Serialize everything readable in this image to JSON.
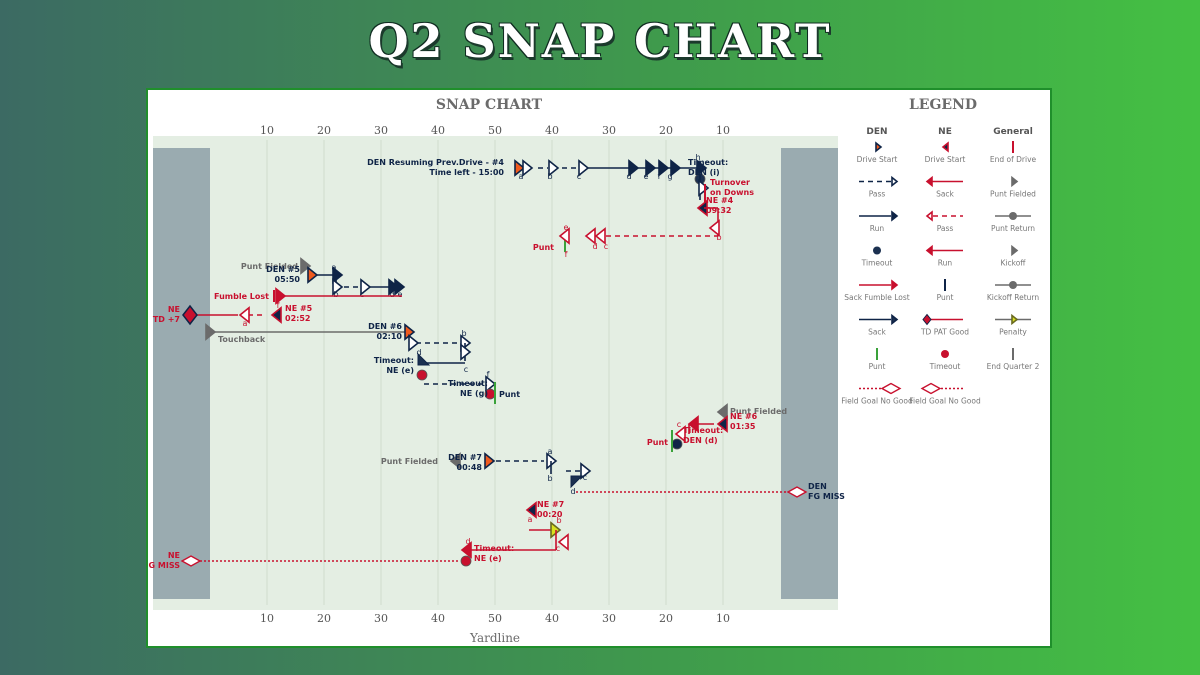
{
  "page_title": "Q2 SNAP CHART",
  "chart_data": {
    "type": "snap-chart",
    "title": "SNAP CHART",
    "xlabel": "Yardline",
    "x_tick_labels": [
      "10",
      "20",
      "30",
      "40",
      "50",
      "40",
      "30",
      "20",
      "10"
    ],
    "annotations": [
      {
        "id": "a1",
        "color": "navy",
        "lines": [
          "DEN Resuming Prev.Drive - #4",
          "Time left - 15:00"
        ]
      },
      {
        "id": "a2",
        "color": "red",
        "lines": [
          "Turnover",
          "on Downs"
        ]
      },
      {
        "id": "a3",
        "color": "navy",
        "lines": [
          "Timeout:",
          "DEN (i)"
        ]
      },
      {
        "id": "a4",
        "color": "red",
        "lines": [
          "NE #4",
          "09:32"
        ]
      },
      {
        "id": "a5",
        "color": "red",
        "lines": [
          "Punt"
        ]
      },
      {
        "id": "a6",
        "color": "gray",
        "lines": [
          "Punt Fielded"
        ]
      },
      {
        "id": "a7",
        "color": "navy",
        "lines": [
          "DEN #5",
          "05:50"
        ]
      },
      {
        "id": "a8",
        "color": "red",
        "lines": [
          "Fumble Lost"
        ]
      },
      {
        "id": "a9",
        "color": "red",
        "lines": [
          "NE",
          "TD +7"
        ]
      },
      {
        "id": "a10",
        "color": "red",
        "lines": [
          "NE #5",
          "02:52"
        ]
      },
      {
        "id": "a11",
        "color": "gray",
        "lines": [
          "Touchback"
        ]
      },
      {
        "id": "a12",
        "color": "navy",
        "lines": [
          "DEN #6",
          "02:10"
        ]
      },
      {
        "id": "a13",
        "color": "navy",
        "lines": [
          "Timeout:",
          "NE (e)"
        ]
      },
      {
        "id": "a14",
        "color": "navy",
        "lines": [
          "Timeout:",
          "NE (g)"
        ]
      },
      {
        "id": "a15",
        "color": "navy",
        "lines": [
          "Punt"
        ]
      },
      {
        "id": "a16",
        "color": "gray",
        "lines": [
          "Punt Fielded"
        ]
      },
      {
        "id": "a17",
        "color": "red",
        "lines": [
          "NE #6",
          "01:35"
        ]
      },
      {
        "id": "a18",
        "color": "red",
        "lines": [
          "Timeout:",
          "DEN (d)"
        ]
      },
      {
        "id": "a19",
        "color": "red",
        "lines": [
          "Punt"
        ]
      },
      {
        "id": "a20",
        "color": "gray",
        "lines": [
          "Punt Fielded"
        ]
      },
      {
        "id": "a21",
        "color": "navy",
        "lines": [
          "DEN #7",
          "00:48"
        ]
      },
      {
        "id": "a22",
        "color": "navy",
        "lines": [
          "DEN",
          "FG MISS"
        ]
      },
      {
        "id": "a23",
        "color": "red",
        "lines": [
          "NE #7",
          "00:20"
        ]
      },
      {
        "id": "a24",
        "color": "red",
        "lines": [
          "Timeout:",
          "NE (e)"
        ]
      },
      {
        "id": "a25",
        "color": "red",
        "lines": [
          "NE",
          "FG MISS"
        ]
      }
    ],
    "legend": {
      "title": "LEGEND",
      "columns": [
        "DEN",
        "NE",
        "General"
      ],
      "rows": [
        [
          "Drive Start",
          "Drive Start",
          "End of Drive"
        ],
        [
          "Pass",
          "Sack",
          "Punt Fielded"
        ],
        [
          "Run",
          "Pass",
          "Punt Return"
        ],
        [
          "Timeout",
          "Run",
          "Kickoff"
        ],
        [
          "Sack Fumble Lost",
          "Punt",
          "Kickoff Return"
        ],
        [
          "Sack",
          "TD PAT Good",
          "Penalty"
        ],
        [
          "Punt",
          "Timeout",
          "End Quarter 2"
        ],
        [
          "Field Goal No Good",
          "Field Goal No Good",
          ""
        ]
      ]
    },
    "colors": {
      "den": "#0f2447",
      "ne": "#c8102e",
      "gray": "#6b6b6b",
      "orange": "#f05a1e",
      "yellow": "#d8e020",
      "field": "#e4eee3",
      "endzone": "#9aabb0"
    }
  }
}
